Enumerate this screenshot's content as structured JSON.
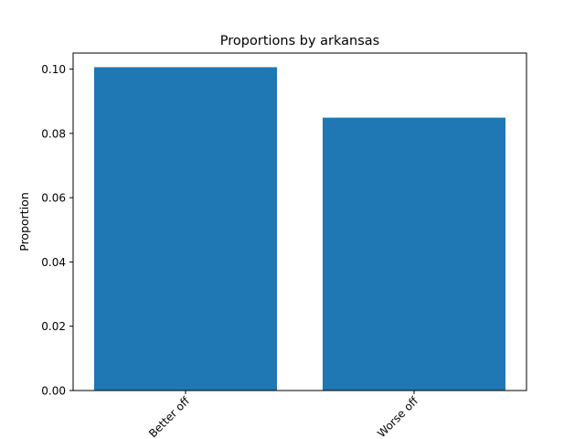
{
  "chart_data": {
    "type": "bar",
    "title": "Proportions by arkansas",
    "xlabel": "",
    "ylabel": "Proportion",
    "categories": [
      "Better off",
      "Worse off"
    ],
    "values": [
      0.1006,
      0.0849
    ],
    "ylim": [
      0,
      0.105
    ],
    "yticks": [
      0.0,
      0.02,
      0.04,
      0.06,
      0.08,
      0.1
    ],
    "ytick_labels": [
      "0.00",
      "0.02",
      "0.04",
      "0.06",
      "0.08",
      "0.10"
    ],
    "xtick_rotation_deg": 45,
    "grid": false,
    "legend": "none",
    "colors": {
      "bar": "#1f77b4"
    }
  }
}
